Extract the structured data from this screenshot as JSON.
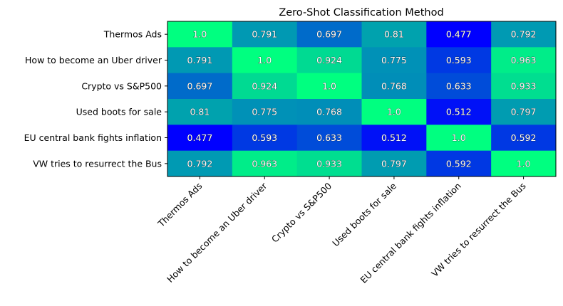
{
  "chart_data": {
    "type": "heatmap",
    "title": "Zero-Shot Classification Method",
    "row_labels": [
      "Thermos Ads",
      "How to become an Uber driver",
      "Crypto vs S&P500",
      "Used boots for sale",
      "EU central bank fights inflation",
      "VW tries to resurrect the Bus"
    ],
    "col_labels": [
      "Thermos Ads",
      "How to become an Uber driver",
      "Crypto vs S&P500",
      "Used boots for sale",
      "EU central bank fights inflation",
      "VW tries to resurrect the Bus"
    ],
    "values": [
      [
        1.0,
        0.791,
        0.697,
        0.81,
        0.477,
        0.792
      ],
      [
        0.791,
        1.0,
        0.924,
        0.775,
        0.593,
        0.963
      ],
      [
        0.697,
        0.924,
        1.0,
        0.768,
        0.633,
        0.933
      ],
      [
        0.81,
        0.775,
        0.768,
        1.0,
        0.512,
        0.797
      ],
      [
        0.477,
        0.593,
        0.633,
        0.512,
        1.0,
        0.592
      ],
      [
        0.792,
        0.963,
        0.933,
        0.797,
        0.592,
        1.0
      ]
    ],
    "value_labels": [
      [
        "1.0",
        "0.791",
        "0.697",
        "0.81",
        "0.477",
        "0.792"
      ],
      [
        "0.791",
        "1.0",
        "0.924",
        "0.775",
        "0.593",
        "0.963"
      ],
      [
        "0.697",
        "0.924",
        "1.0",
        "0.768",
        "0.633",
        "0.933"
      ],
      [
        "0.81",
        "0.775",
        "0.768",
        "1.0",
        "0.512",
        "0.797"
      ],
      [
        "0.477",
        "0.593",
        "0.633",
        "0.512",
        "1.0",
        "0.592"
      ],
      [
        "0.792",
        "0.963",
        "0.933",
        "0.797",
        "0.592",
        "1.0"
      ]
    ],
    "colormap": "winter",
    "colormap_low": "#0000ff",
    "colormap_high": "#00ff80",
    "grid": false,
    "legend": "none"
  }
}
